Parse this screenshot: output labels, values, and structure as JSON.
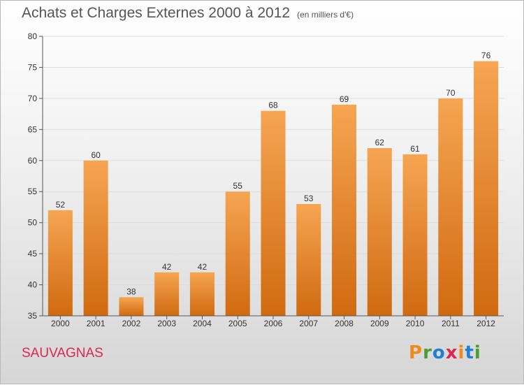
{
  "header": {
    "title": "Achats et Charges Externes 2000 à 2012",
    "unit": "(en milliers d'€)"
  },
  "footer": {
    "commune": "SAUVAGNAS",
    "logo_text": "Proxiti",
    "logo_colors": [
      "#f08a1c",
      "#4a9e2f",
      "#1f7fd4",
      "#e0254f",
      "#f08a1c",
      "#1f7fd4",
      "#4a9e2f"
    ]
  },
  "colors": {
    "bar_light": "#f6a552",
    "bar_dark": "#d06a10",
    "axis": "#555555",
    "grid": "#dddddd"
  },
  "chart_data": {
    "type": "bar",
    "title": "Achats et Charges Externes 2000 à 2012",
    "subtitle": "(en milliers d'€)",
    "xlabel": "",
    "ylabel": "",
    "categories": [
      "2000",
      "2001",
      "2002",
      "2003",
      "2004",
      "2005",
      "2006",
      "2007",
      "2008",
      "2009",
      "2010",
      "2011",
      "2012"
    ],
    "values": [
      52,
      60,
      38,
      42,
      42,
      55,
      68,
      53,
      69,
      62,
      61,
      70,
      76
    ],
    "ylim": [
      35,
      80
    ],
    "yticks": [
      35,
      40,
      45,
      50,
      55,
      60,
      65,
      70,
      75,
      80
    ],
    "grid": true,
    "data_labels": true
  }
}
